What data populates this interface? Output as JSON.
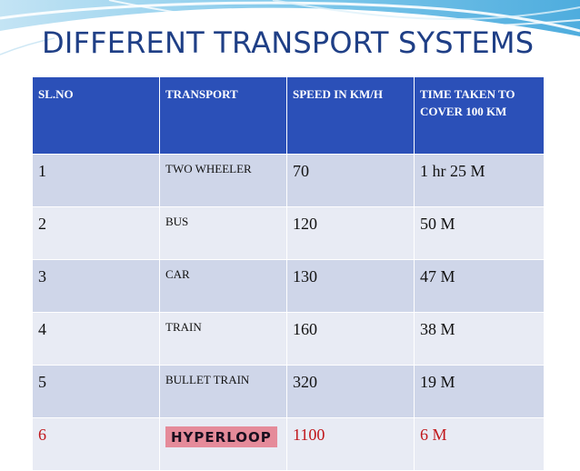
{
  "slide": {
    "title": "DIFFERENT TRANSPORT SYSTEMS"
  },
  "table": {
    "headers": [
      "SL.NO",
      "TRANSPORT",
      "SPEED IN KM/H",
      "TIME TAKEN TO COVER 100 KM"
    ],
    "rows": [
      {
        "sl": "1",
        "transport": "TWO WHEELER",
        "speed": "70",
        "time": "1 hr 25 M"
      },
      {
        "sl": "2",
        "transport": "BUS",
        "speed": "120",
        "time": "50 M"
      },
      {
        "sl": "3",
        "transport": "CAR",
        "speed": "130",
        "time": "47 M"
      },
      {
        "sl": "4",
        "transport": "TRAIN",
        "speed": "160",
        "time": "38 M"
      },
      {
        "sl": "5",
        "transport": "BULLET TRAIN",
        "speed": "320",
        "time": "19 M"
      },
      {
        "sl": "6",
        "transport": "HYPERLOOP",
        "speed": "1100",
        "time": "6 M"
      }
    ]
  },
  "colors": {
    "title": "#1f3f86",
    "header_bg": "#2b50b8",
    "row_odd": "#cfd6e9",
    "row_even": "#e8ebf4",
    "highlight_text": "#c0161a",
    "logo_bg": "#e58b9a"
  }
}
